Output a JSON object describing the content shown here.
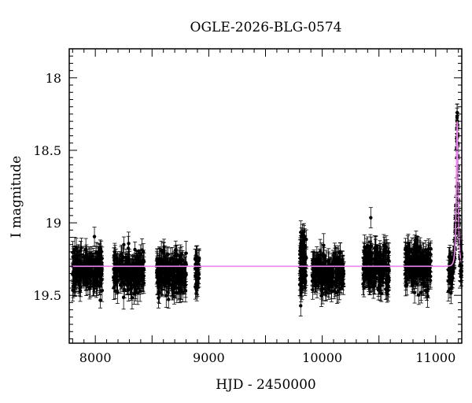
{
  "chart_data": {
    "type": "scatter",
    "title": "OGLE-2026-BLG-0574",
    "xlabel": "HJD - 2450000",
    "ylabel": "I magnitude",
    "xlim": [
      7770,
      11230
    ],
    "ylim": [
      19.83,
      17.8
    ],
    "y_inverted": true,
    "grid": false,
    "legend": "none",
    "x_ticks": [
      8000,
      9000,
      10000,
      11000
    ],
    "x_tick_labels": [
      "8000",
      "9000",
      "10000",
      "11000"
    ],
    "y_ticks": [
      18,
      18.5,
      19,
      19.5
    ],
    "y_tick_labels": [
      "18",
      "18.5",
      "19",
      "19.5"
    ],
    "point_color": "#000000",
    "model_color": "#ee82ee",
    "observing_seasons": [
      {
        "start": 7800,
        "end": 8060,
        "median_mag": 19.32,
        "scatter": 0.11,
        "error": 0.065,
        "n": 230
      },
      {
        "start": 8160,
        "end": 8430,
        "median_mag": 19.33,
        "scatter": 0.11,
        "error": 0.065,
        "n": 230
      },
      {
        "start": 8540,
        "end": 8800,
        "median_mag": 19.34,
        "scatter": 0.12,
        "error": 0.065,
        "n": 230
      },
      {
        "start": 8880,
        "end": 8920,
        "median_mag": 19.33,
        "scatter": 0.1,
        "error": 0.065,
        "n": 45
      },
      {
        "start": 9800,
        "end": 9860,
        "median_mag": 19.3,
        "scatter": 0.17,
        "error": 0.065,
        "n": 90
      },
      {
        "start": 9910,
        "end": 10190,
        "median_mag": 19.34,
        "scatter": 0.12,
        "error": 0.065,
        "n": 230
      },
      {
        "start": 10360,
        "end": 10590,
        "median_mag": 19.31,
        "scatter": 0.12,
        "error": 0.065,
        "n": 230
      },
      {
        "start": 10730,
        "end": 10960,
        "median_mag": 19.3,
        "scatter": 0.12,
        "error": 0.065,
        "n": 230
      },
      {
        "start": 11110,
        "end": 11230,
        "median_mag": 19.33,
        "scatter": 0.1,
        "error": 0.065,
        "n": 110
      }
    ],
    "model": {
      "baseline_mag": 19.3,
      "peak_time": 11190,
      "peak_mag": 18.3,
      "timescale_days": 14
    },
    "event_points": [
      {
        "x": 11186,
        "y": 18.55
      },
      {
        "x": 11188,
        "y": 18.42
      },
      {
        "x": 11189,
        "y": 18.3
      },
      {
        "x": 11190,
        "y": 18.24
      },
      {
        "x": 11191,
        "y": 18.3
      },
      {
        "x": 11192,
        "y": 18.45
      },
      {
        "x": 11194,
        "y": 18.62
      },
      {
        "x": 11197,
        "y": 18.8
      },
      {
        "x": 11183,
        "y": 18.75
      },
      {
        "x": 11180,
        "y": 18.95
      },
      {
        "x": 11200,
        "y": 18.95
      }
    ]
  }
}
